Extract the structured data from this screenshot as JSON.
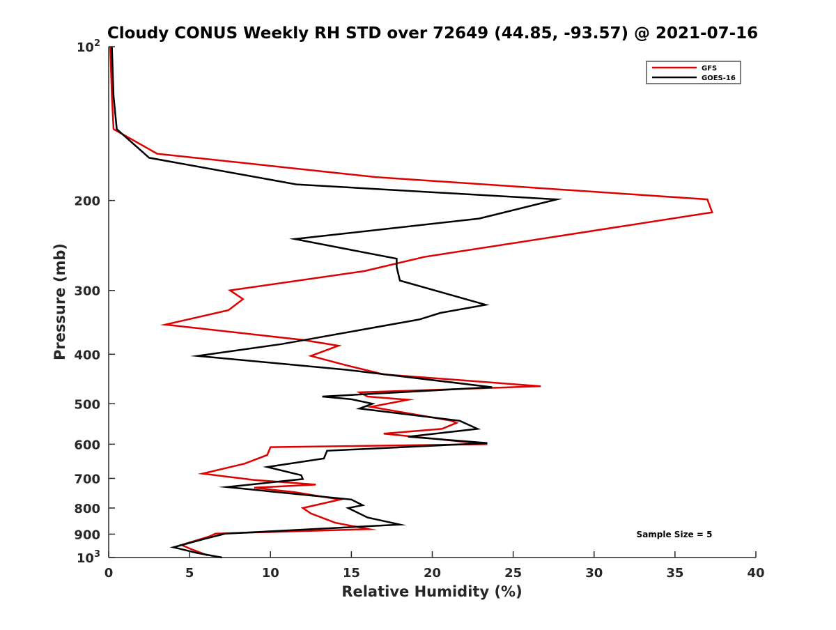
{
  "chart_data": {
    "type": "line",
    "title": "Cloudy CONUS Weekly RH STD over 72649 (44.85, -93.57) @ 2021-07-16",
    "xlabel": "Relative Humidity (%)",
    "ylabel": "Pressure (mb)",
    "xlim": [
      0,
      40
    ],
    "ylim": [
      100,
      1000
    ],
    "y_scale": "log",
    "y_reversed": true,
    "x_ticks": [
      0,
      5,
      10,
      15,
      20,
      25,
      30,
      35,
      40
    ],
    "y_ticks": [
      {
        "value": 100,
        "base": "10",
        "exp": "2"
      },
      {
        "value": 200,
        "label": "200"
      },
      {
        "value": 300,
        "label": "300"
      },
      {
        "value": 400,
        "label": "400"
      },
      {
        "value": 500,
        "label": "500"
      },
      {
        "value": 600,
        "label": "600"
      },
      {
        "value": 700,
        "label": "700"
      },
      {
        "value": 800,
        "label": "800"
      },
      {
        "value": 900,
        "label": "900"
      },
      {
        "value": 1000,
        "base": "10",
        "exp": "3"
      }
    ],
    "grid": false,
    "legend_position": "top-right",
    "annotation": "Sample Size = 5",
    "series": [
      {
        "name": "GFS",
        "color": "#dd0000",
        "points": [
          [
            0.1,
            100
          ],
          [
            0.2,
            125
          ],
          [
            0.3,
            145
          ],
          [
            3.0,
            162
          ],
          [
            16.5,
            180
          ],
          [
            37.0,
            199
          ],
          [
            37.3,
            211
          ],
          [
            19.5,
            258
          ],
          [
            15.8,
            275
          ],
          [
            7.5,
            300
          ],
          [
            8.3,
            312
          ],
          [
            7.4,
            328
          ],
          [
            3.5,
            350
          ],
          [
            12.0,
            375
          ],
          [
            14.2,
            385
          ],
          [
            12.5,
            403
          ],
          [
            14.5,
            419
          ],
          [
            17.0,
            438
          ],
          [
            26.7,
            462
          ],
          [
            15.5,
            475
          ],
          [
            16.0,
            484
          ],
          [
            18.5,
            491
          ],
          [
            16.2,
            507
          ],
          [
            21.2,
            540
          ],
          [
            21.5,
            545
          ],
          [
            20.6,
            560
          ],
          [
            17.0,
            572
          ],
          [
            23.4,
            600
          ],
          [
            10.0,
            608
          ],
          [
            9.8,
            630
          ],
          [
            8.4,
            655
          ],
          [
            5.8,
            685
          ],
          [
            9.0,
            705
          ],
          [
            12.8,
            720
          ],
          [
            9.0,
            730
          ],
          [
            11.5,
            745
          ],
          [
            14.3,
            770
          ],
          [
            12.0,
            800
          ],
          [
            12.5,
            820
          ],
          [
            14.0,
            855
          ],
          [
            16.1,
            880
          ],
          [
            8.0,
            895
          ],
          [
            6.6,
            898
          ],
          [
            6.2,
            910
          ],
          [
            4.5,
            945
          ],
          [
            5.0,
            960
          ],
          [
            6.1,
            990
          ]
        ]
      },
      {
        "name": "GOES-16",
        "color": "#000000",
        "points": [
          [
            0.2,
            100
          ],
          [
            0.3,
            125
          ],
          [
            0.5,
            145
          ],
          [
            2.5,
            165
          ],
          [
            11.6,
            186
          ],
          [
            27.7,
            199
          ],
          [
            22.9,
            217
          ],
          [
            11.5,
            238
          ],
          [
            17.8,
            260
          ],
          [
            17.8,
            270
          ],
          [
            18.0,
            287
          ],
          [
            23.3,
            320
          ],
          [
            20.5,
            332
          ],
          [
            19.2,
            342
          ],
          [
            10.7,
            382
          ],
          [
            5.5,
            403
          ],
          [
            14.7,
            429
          ],
          [
            23.7,
            464
          ],
          [
            13.2,
            484
          ],
          [
            15.0,
            490
          ],
          [
            16.3,
            500
          ],
          [
            15.5,
            511
          ],
          [
            21.7,
            540
          ],
          [
            22.8,
            560
          ],
          [
            18.5,
            580
          ],
          [
            23.4,
            597
          ],
          [
            13.5,
            618
          ],
          [
            13.3,
            640
          ],
          [
            9.8,
            665
          ],
          [
            11.9,
            690
          ],
          [
            12.0,
            702
          ],
          [
            7.3,
            728
          ],
          [
            15.0,
            770
          ],
          [
            15.7,
            790
          ],
          [
            14.8,
            800
          ],
          [
            16.0,
            835
          ],
          [
            18.0,
            862
          ],
          [
            7.2,
            898
          ],
          [
            6.0,
            918
          ],
          [
            4.0,
            955
          ],
          [
            5.5,
            980
          ],
          [
            7.0,
            1000
          ]
        ]
      }
    ]
  }
}
